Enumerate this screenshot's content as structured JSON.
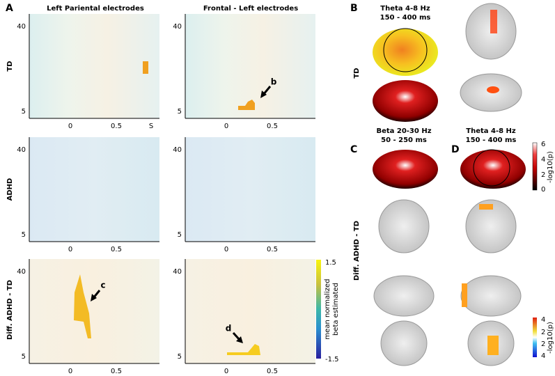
{
  "panel_a": {
    "label": "A",
    "column_titles": [
      "Left Pariental  electrodes",
      "Frontal - Left electrodes"
    ],
    "row_labels": [
      "TD",
      "ADHD",
      "Diff. ADHD  - TD"
    ],
    "plots": [
      {
        "x_ticks": [
          "0",
          "0.5",
          "S"
        ],
        "y_ticks": [
          "40",
          "5"
        ]
      },
      {
        "x_ticks": [
          "0",
          "0.5"
        ],
        "y_ticks": [
          "40",
          "5"
        ]
      },
      {
        "x_ticks": [
          "0",
          "0.5"
        ],
        "y_ticks": [
          "40",
          "5"
        ]
      },
      {
        "x_ticks": [
          "0",
          "0.5"
        ],
        "y_ticks": [
          "40",
          "5"
        ]
      },
      {
        "x_ticks": [
          "0",
          "0.5"
        ],
        "y_ticks": [
          "40",
          "5"
        ]
      },
      {
        "x_ticks": [
          "0",
          "0.5"
        ],
        "y_ticks": [
          "40",
          "5"
        ]
      }
    ],
    "annotations": [
      "b",
      "c",
      "d"
    ],
    "colorbar": {
      "max": "1.5",
      "min": "-1.5",
      "label": [
        "mean normalized",
        "beta   estimated"
      ]
    }
  },
  "panel_b": {
    "label": "B",
    "title": [
      "Theta  4-8 Hz",
      "150 -  400 ms"
    ],
    "row_label": "TD"
  },
  "panel_c": {
    "label": "C",
    "title": [
      "Beta  20-30 Hz",
      "50 -  250 ms"
    ]
  },
  "panel_d": {
    "label": "D",
    "title": [
      "Theta  4-8 Hz",
      "150 -  400 ms"
    ]
  },
  "diff_label": "Diff. ADHD  - TD",
  "colorbar_top": {
    "ticks": [
      "6",
      "4",
      "2",
      "0"
    ],
    "label": "-log10(p)"
  },
  "colorbar_bottom": {
    "ticks": [
      "4",
      "2",
      "2",
      "4"
    ],
    "label": "-log10(p)"
  }
}
